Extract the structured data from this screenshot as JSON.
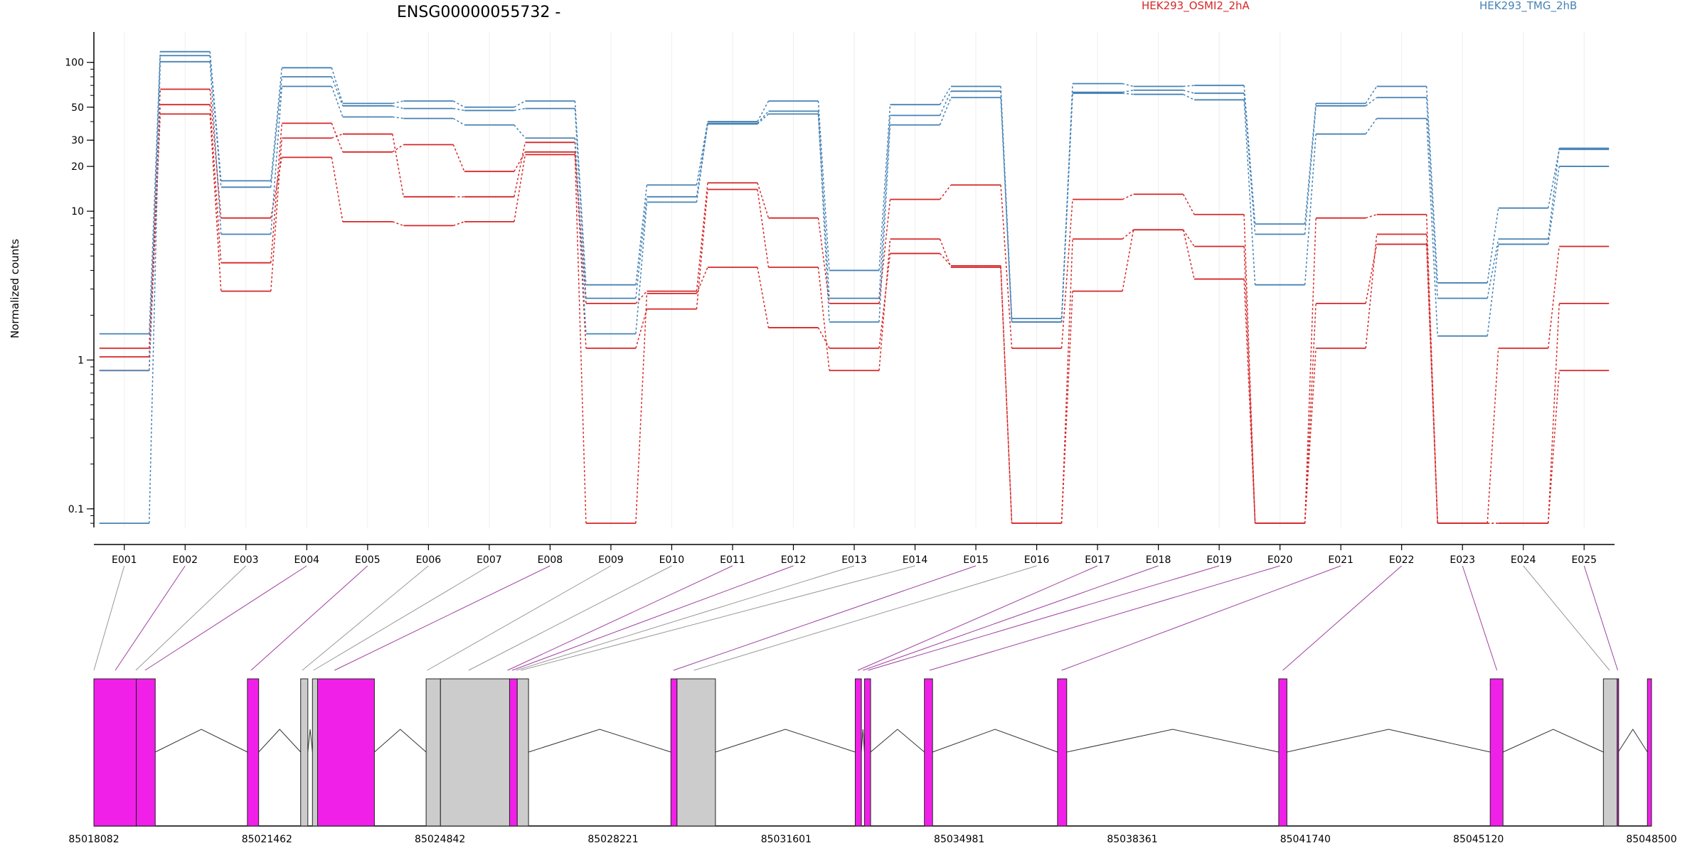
{
  "chart_data": {
    "type": "line",
    "title": "ENSG00000055732 -",
    "ylabel": "Normalized counts",
    "xlabel": "",
    "yscale": "log",
    "ylim": [
      0.075,
      160
    ],
    "yticks": [
      "0.1",
      "1",
      "10",
      "20",
      "30",
      "50",
      "100"
    ],
    "grid": "vertical",
    "legend_placement": "top-right",
    "categories": [
      "E001",
      "E002",
      "E003",
      "E004",
      "E005",
      "E006",
      "E007",
      "E008",
      "E009",
      "E010",
      "E011",
      "E012",
      "E013",
      "E014",
      "E015",
      "E016",
      "E017",
      "E018",
      "E019",
      "E020",
      "E021",
      "E022",
      "E023",
      "E024",
      "E025"
    ],
    "series": [
      {
        "group": "HEK293_OSMI2_2hA",
        "color": "#d62728",
        "values": [
          1.2,
          66,
          9,
          23,
          8.5,
          8,
          8.5,
          24,
          0.08,
          2.8,
          4.2,
          1.65,
          1.2,
          5.2,
          4.3,
          0.08,
          2.9,
          7.5,
          3.5,
          0.08,
          1.2,
          7,
          0.08,
          0.08,
          0.85
        ]
      },
      {
        "group": "HEK293_OSMI2_2hA",
        "color": "#d62728",
        "values": [
          1.05,
          52,
          4.5,
          39,
          25,
          28,
          18.5,
          25,
          2.4,
          2.9,
          15.5,
          9,
          2.4,
          12,
          15,
          1.2,
          12,
          13,
          9.5,
          0.08,
          9,
          9.5,
          0.08,
          1.2,
          5.8
        ]
      },
      {
        "group": "HEK293_OSMI2_2hA",
        "color": "#d62728",
        "values": [
          0.85,
          45,
          2.9,
          31,
          33,
          12.5,
          12.5,
          29,
          1.2,
          2.2,
          14,
          4.2,
          0.85,
          6.5,
          4.2,
          0.08,
          6.5,
          7.5,
          5.8,
          0.08,
          2.4,
          6,
          0.08,
          0.08,
          2.4
        ]
      },
      {
        "group": "HEK293_TMG_2hB",
        "color": "#4682b4",
        "values": [
          1.5,
          118,
          16,
          92,
          53,
          55,
          50,
          55,
          3.2,
          15,
          40,
          55,
          4,
          52,
          69,
          1.9,
          72,
          69,
          70,
          8.2,
          53,
          69,
          3.3,
          10.5,
          26
        ]
      },
      {
        "group": "HEK293_TMG_2hB",
        "color": "#4682b4",
        "values": [
          0.85,
          111,
          14.5,
          80,
          51,
          49,
          47.5,
          49,
          2.6,
          12.5,
          39,
          47,
          2.6,
          44,
          64,
          1.8,
          63,
          65,
          62,
          7,
          51,
          58,
          2.6,
          6.5,
          26.5
        ]
      },
      {
        "group": "HEK293_TMG_2hB",
        "color": "#4682b4",
        "values": [
          0.08,
          101,
          7,
          69,
          43,
          42,
          38,
          31,
          1.5,
          11.5,
          38.5,
          45,
          1.8,
          38,
          58,
          1.8,
          62,
          61,
          56,
          3.2,
          33,
          42,
          1.45,
          6,
          20
        ]
      }
    ],
    "legend": [
      {
        "label": "HEK293_OSMI2_2hA",
        "color": "#d62728"
      },
      {
        "label": "HEK293_TMG_2hB",
        "color": "#4682b4"
      }
    ],
    "gene_model": {
      "coordinate_labels": [
        "85018082",
        "85021462",
        "85024842",
        "85028221",
        "85031601",
        "85034981",
        "85038361",
        "85041740",
        "85045120",
        "85048500"
      ],
      "coord_min": 85018082,
      "coord_max": 85048500,
      "exons": [
        {
          "start": 85018082,
          "end": 85018910,
          "type": "tested"
        },
        {
          "start": 85018910,
          "end": 85019280,
          "type": "tested"
        },
        {
          "start": 85021080,
          "end": 85021300,
          "type": "tested"
        },
        {
          "start": 85022120,
          "end": 85022260,
          "type": "untested"
        },
        {
          "start": 85022350,
          "end": 85022450,
          "type": "untested"
        },
        {
          "start": 85022450,
          "end": 85023560,
          "type": "tested"
        },
        {
          "start": 85024570,
          "end": 85024850,
          "type": "untested"
        },
        {
          "start": 85024850,
          "end": 85026200,
          "type": "untested"
        },
        {
          "start": 85026200,
          "end": 85026350,
          "type": "tested"
        },
        {
          "start": 85026350,
          "end": 85026570,
          "type": "untested"
        },
        {
          "start": 85029350,
          "end": 85029470,
          "type": "tested"
        },
        {
          "start": 85029470,
          "end": 85030220,
          "type": "untested"
        },
        {
          "start": 85032950,
          "end": 85033070,
          "type": "tested"
        },
        {
          "start": 85033130,
          "end": 85033250,
          "type": "tested"
        },
        {
          "start": 85034300,
          "end": 85034460,
          "type": "tested"
        },
        {
          "start": 85036900,
          "end": 85037080,
          "type": "tested"
        },
        {
          "start": 85041220,
          "end": 85041380,
          "type": "tested"
        },
        {
          "start": 85045350,
          "end": 85045600,
          "type": "tested"
        },
        {
          "start": 85047560,
          "end": 85047830,
          "type": "untested"
        },
        {
          "start": 85047830,
          "end": 85047850,
          "type": "tested"
        },
        {
          "start": 85048420,
          "end": 85048500,
          "type": "tested"
        }
      ],
      "bin_links": [
        {
          "bin": "E001",
          "to": 85018082,
          "type": "untested"
        },
        {
          "bin": "E002",
          "to": 85018500,
          "type": "tested"
        },
        {
          "bin": "E003",
          "to": 85018900,
          "type": "untested"
        },
        {
          "bin": "E004",
          "to": 85019080,
          "type": "tested"
        },
        {
          "bin": "E005",
          "to": 85021150,
          "type": "tested"
        },
        {
          "bin": "E006",
          "to": 85022150,
          "type": "untested"
        },
        {
          "bin": "E007",
          "to": 85022370,
          "type": "untested"
        },
        {
          "bin": "E008",
          "to": 85022780,
          "type": "tested"
        },
        {
          "bin": "E009",
          "to": 85024590,
          "type": "untested"
        },
        {
          "bin": "E010",
          "to": 85025400,
          "type": "untested"
        },
        {
          "bin": "E011",
          "to": 85026160,
          "type": "tested"
        },
        {
          "bin": "E012",
          "to": 85026250,
          "type": "tested"
        },
        {
          "bin": "E013",
          "to": 85026330,
          "type": "untested"
        },
        {
          "bin": "E014",
          "to": 85026420,
          "type": "untested"
        },
        {
          "bin": "E015",
          "to": 85029400,
          "type": "tested"
        },
        {
          "bin": "E016",
          "to": 85029800,
          "type": "untested"
        },
        {
          "bin": "E017",
          "to": 85033000,
          "type": "tested"
        },
        {
          "bin": "E018",
          "to": 85033100,
          "type": "tested"
        },
        {
          "bin": "E019",
          "to": 85033200,
          "type": "tested"
        },
        {
          "bin": "E020",
          "to": 85034400,
          "type": "tested"
        },
        {
          "bin": "E021",
          "to": 85036980,
          "type": "tested"
        },
        {
          "bin": "E022",
          "to": 85041300,
          "type": "tested"
        },
        {
          "bin": "E023",
          "to": 85045480,
          "type": "tested"
        },
        {
          "bin": "E024",
          "to": 85047680,
          "type": "untested"
        },
        {
          "bin": "E025",
          "to": 85047840,
          "type": "tested"
        }
      ],
      "colors": {
        "tested": "#f020e8",
        "untested": "#cccccc",
        "tested_link": "#a040a0",
        "untested_link": "#999999"
      }
    }
  }
}
